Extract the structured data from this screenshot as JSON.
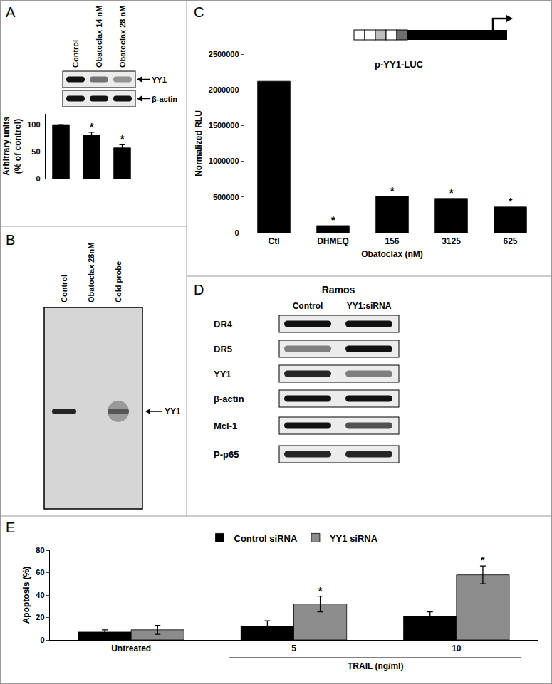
{
  "chart_data": [
    {
      "type": "bar",
      "categories": [
        null,
        null,
        null
      ],
      "values": [
        100,
        81,
        57
      ],
      "errors": [
        0,
        5,
        6
      ],
      "color": "#000000",
      "ylabel": "Arbitrary units\n(% of control)",
      "ylim": [
        0,
        120
      ],
      "yticks": [
        0,
        50,
        100
      ],
      "tick_labels": "y",
      "annotations": [
        {
          "text": "*",
          "index": 1
        },
        {
          "text": "*",
          "index": 2
        }
      ]
    },
    {
      "type": "bar",
      "categories": [
        "Ctl",
        "DHMEQ",
        "156",
        "3125",
        "625"
      ],
      "values": [
        2120000,
        100000,
        510000,
        480000,
        360000
      ],
      "color": "#000000",
      "ylabel": "Normalized RLU",
      "xlabel": "Obatoclax (nM)",
      "ylim": [
        0,
        2500000
      ],
      "yticks": [
        0,
        500000,
        1000000,
        1500000,
        2000000,
        2500000
      ],
      "annotations": [
        {
          "text": "*",
          "index": 1
        },
        {
          "text": "*",
          "index": 2
        },
        {
          "text": "*",
          "index": 3
        },
        {
          "text": "*",
          "index": 4
        }
      ]
    },
    {
      "type": "bar",
      "categories": [
        "Untreated",
        "5",
        "10"
      ],
      "series": [
        {
          "name": "Control siRNA",
          "color": "#000000",
          "values": [
            7,
            12,
            21
          ],
          "errors": [
            2,
            5,
            4
          ]
        },
        {
          "name": "YY1 siRNA",
          "color": "#8c8c8c",
          "values": [
            9,
            32,
            58
          ],
          "errors": [
            4,
            7,
            8
          ]
        }
      ],
      "ylabel": "Apoptosis (%)",
      "ylim": [
        0,
        80
      ],
      "yticks": [
        0,
        20,
        40,
        60,
        80
      ],
      "legend": "top",
      "annotations": [
        {
          "text": "*",
          "index": 1,
          "series": "YY1 siRNA"
        },
        {
          "text": "*",
          "index": 2,
          "series": "YY1 siRNA"
        },
        {
          "text": "TRAIL (ng/ml)",
          "span": [
            1,
            2
          ]
        }
      ]
    }
  ],
  "panels": {
    "A": {
      "letter": "A",
      "lanes": [
        "Control",
        "Obatoclax 14 nM",
        "Obatoclax 28 nM"
      ],
      "rows": [
        {
          "name": "YY1",
          "bands": [
            1,
            0.55,
            0.4
          ]
        },
        {
          "name": "β-actin",
          "bands": [
            1,
            1,
            1
          ]
        }
      ]
    },
    "B": {
      "letter": "B",
      "lanes": [
        "Control",
        "Obatoclax 28nM",
        "Cold probe"
      ],
      "band": "YY1",
      "bands": [
        0.9,
        0,
        0.5
      ]
    },
    "C": {
      "letter": "C",
      "construct": "p-YY1-LUC"
    },
    "D": {
      "letter": "D",
      "cell_line": "Ramos",
      "lanes": [
        "Control",
        "YY1:siRNA"
      ],
      "rows": [
        {
          "name": "DR4",
          "bands": [
            1,
            1
          ]
        },
        {
          "name": "DR5",
          "bands": [
            0.5,
            1
          ]
        },
        {
          "name": "YY1",
          "bands": [
            0.9,
            0.5
          ]
        },
        {
          "name": "β-actin",
          "bands": [
            1,
            1
          ]
        },
        {
          "name": "Mcl-1",
          "bands": [
            1,
            0.7
          ]
        },
        {
          "name": "P-p65",
          "bands": [
            0.9,
            0.9
          ]
        }
      ]
    },
    "E": {
      "letter": "E"
    }
  }
}
